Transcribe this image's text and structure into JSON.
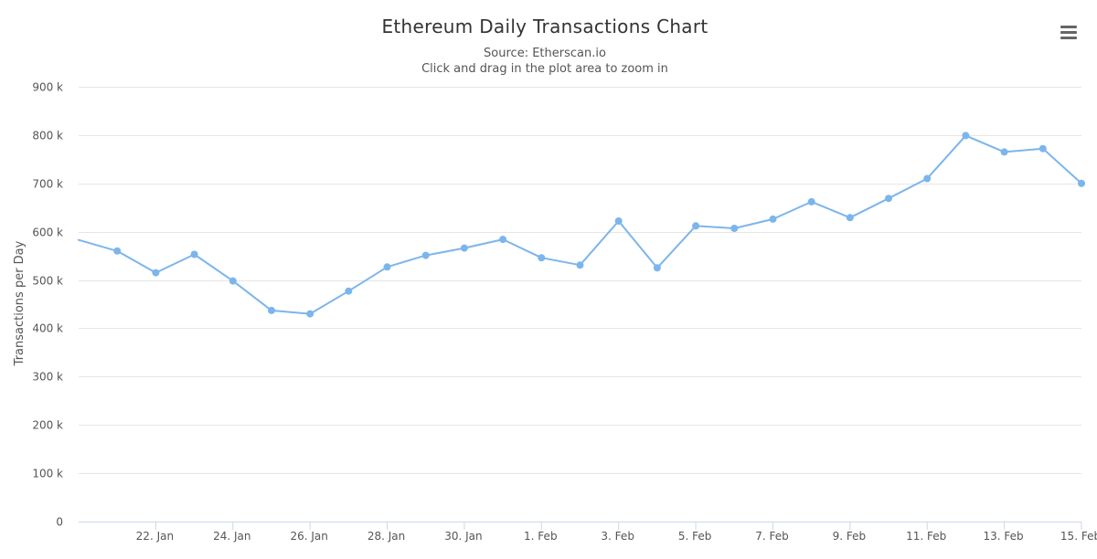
{
  "chart_data": {
    "type": "line",
    "title": "Ethereum Daily Transactions Chart",
    "subtitle": [
      "Source: Etherscan.io",
      "Click and drag in the plot area to zoom in"
    ],
    "xlabel": "",
    "ylabel": "Transactions per Day",
    "ylim": [
      0,
      900000
    ],
    "yticks": [
      0,
      100000,
      200000,
      300000,
      400000,
      500000,
      600000,
      700000,
      800000,
      900000
    ],
    "ytick_labels": [
      "0",
      "100 k",
      "200 k",
      "300 k",
      "400 k",
      "500 k",
      "600 k",
      "700 k",
      "800 k",
      "900 k"
    ],
    "xlim": [
      "2018-01-20",
      "2018-02-15"
    ],
    "xticks": [
      "2018-01-22",
      "2018-01-24",
      "2018-01-26",
      "2018-01-28",
      "2018-01-30",
      "2018-02-01",
      "2018-02-03",
      "2018-02-05",
      "2018-02-07",
      "2018-02-09",
      "2018-02-11",
      "2018-02-13",
      "2018-02-15"
    ],
    "xtick_labels": [
      "22. Jan",
      "24. Jan",
      "26. Jan",
      "28. Jan",
      "30. Jan",
      "1. Feb",
      "3. Feb",
      "5. Feb",
      "7. Feb",
      "9. Feb",
      "11. Feb",
      "13. Feb",
      "15. Feb"
    ],
    "grid": true,
    "legend": false,
    "series": [
      {
        "color": "#7cb5ec",
        "points": [
          {
            "x": "2018-01-21",
            "y": 560000
          },
          {
            "x": "2018-01-22",
            "y": 515000
          },
          {
            "x": "2018-01-23",
            "y": 553000
          },
          {
            "x": "2018-01-24",
            "y": 498000
          },
          {
            "x": "2018-01-25",
            "y": 437000
          },
          {
            "x": "2018-01-26",
            "y": 430000
          },
          {
            "x": "2018-01-27",
            "y": 477000
          },
          {
            "x": "2018-01-28",
            "y": 527000
          },
          {
            "x": "2018-01-29",
            "y": 551000
          },
          {
            "x": "2018-01-30",
            "y": 566000
          },
          {
            "x": "2018-01-31",
            "y": 584000
          },
          {
            "x": "2018-02-01",
            "y": 546000
          },
          {
            "x": "2018-02-02",
            "y": 531000
          },
          {
            "x": "2018-02-03",
            "y": 622000
          },
          {
            "x": "2018-02-04",
            "y": 525000
          },
          {
            "x": "2018-02-05",
            "y": 612000
          },
          {
            "x": "2018-02-06",
            "y": 607000
          },
          {
            "x": "2018-02-07",
            "y": 626000
          },
          {
            "x": "2018-02-08",
            "y": 662000
          },
          {
            "x": "2018-02-09",
            "y": 629000
          },
          {
            "x": "2018-02-10",
            "y": 669000
          },
          {
            "x": "2018-02-11",
            "y": 710000
          },
          {
            "x": "2018-02-12",
            "y": 799000
          },
          {
            "x": "2018-02-13",
            "y": 765000
          },
          {
            "x": "2018-02-14",
            "y": 772000
          },
          {
            "x": "2018-02-15",
            "y": 700000
          }
        ]
      }
    ]
  },
  "colors": {
    "series": "#7cb5ec",
    "grid": "#e6e6e6",
    "axis_line": "#ccd6eb",
    "text": "#555555",
    "title": "#333333"
  },
  "menu": {
    "icon": "hamburger-menu-icon"
  }
}
